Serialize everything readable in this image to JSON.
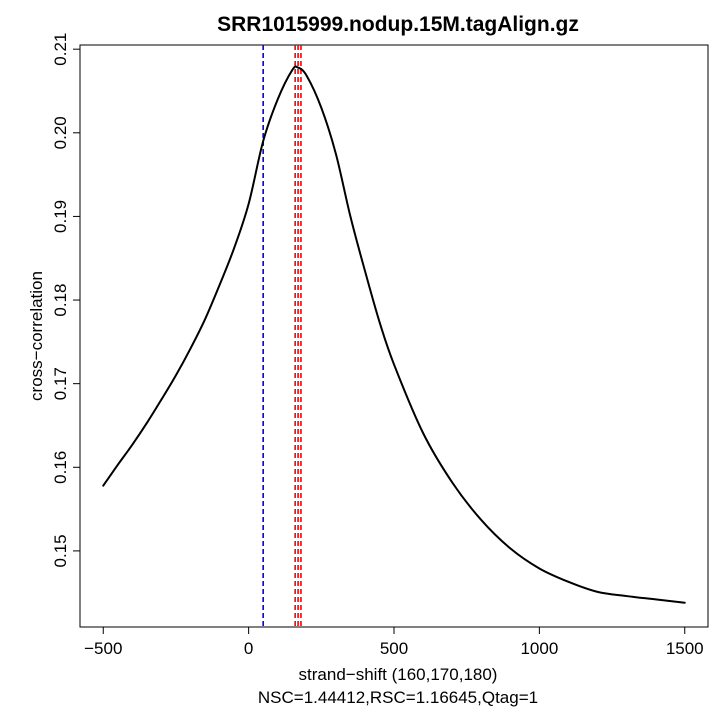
{
  "chart_data": {
    "type": "line",
    "title": "SRR1015999.nodup.15M.tagAlign.gz",
    "xlabel": "strand−shift (160,170,180)",
    "subtitle": "NSC=1.44412,RSC=1.16645,Qtag=1",
    "ylabel": "cross−correlation",
    "xlim": [
      -580,
      1580
    ],
    "ylim": [
      0.1409,
      0.2105
    ],
    "x_ticks": [
      -500,
      0,
      500,
      1000,
      1500
    ],
    "x_tick_labels": [
      "−500",
      "0",
      "500",
      "1000",
      "1500"
    ],
    "y_ticks": [
      0.15,
      0.16,
      0.17,
      0.18,
      0.19,
      0.2,
      0.21
    ],
    "y_tick_labels": [
      "0.15",
      "0.16",
      "0.17",
      "0.18",
      "0.19",
      "0.20",
      "0.21"
    ],
    "series": [
      {
        "name": "cross-correlation",
        "color": "#000000",
        "x": [
          -500,
          -450,
          -400,
          -350,
          -300,
          -250,
          -200,
          -150,
          -100,
          -50,
          0,
          50,
          100,
          150,
          170,
          200,
          250,
          300,
          350,
          400,
          450,
          500,
          600,
          700,
          800,
          900,
          1000,
          1100,
          1200,
          1300,
          1400,
          1500
        ],
        "y": [
          0.1578,
          0.1603,
          0.1627,
          0.1653,
          0.1681,
          0.171,
          0.1742,
          0.1777,
          0.1818,
          0.1862,
          0.1915,
          0.199,
          0.204,
          0.2075,
          0.2078,
          0.2068,
          0.203,
          0.1975,
          0.19,
          0.1835,
          0.1774,
          0.1723,
          0.1641,
          0.1582,
          0.1537,
          0.1503,
          0.1479,
          0.1463,
          0.1451,
          0.1446,
          0.1442,
          0.1438
        ]
      }
    ],
    "vlines": [
      {
        "x": 50,
        "color": "#0000ff",
        "style": "dashed"
      },
      {
        "x": 160,
        "color": "#ff0000",
        "style": "dashed"
      },
      {
        "x": 170,
        "color": "#ff0000",
        "style": "dashed"
      },
      {
        "x": 180,
        "color": "#ff0000",
        "style": "dashed"
      }
    ]
  }
}
